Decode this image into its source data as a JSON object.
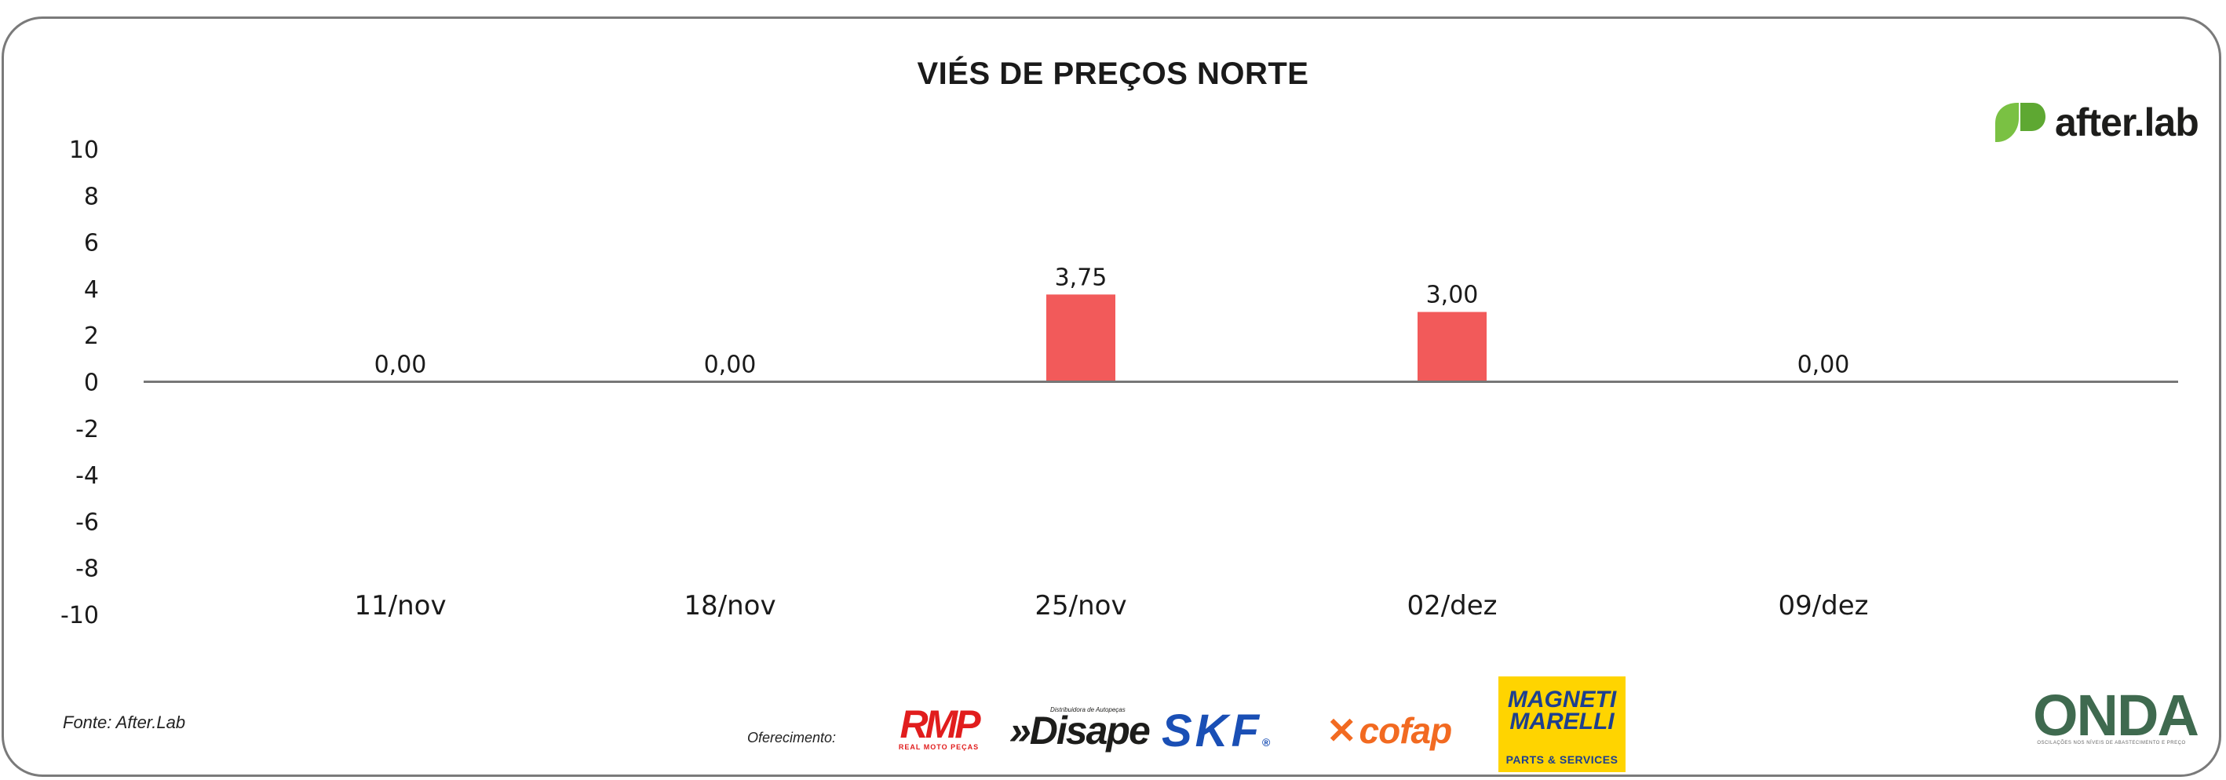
{
  "header": {
    "title": "VIÉS DE PREÇOS NORTE",
    "brand_name": "after.lab",
    "brand_color": "#7ac143"
  },
  "footer": {
    "source": "Fonte: After.Lab",
    "offer_label": "Oferecimento:",
    "sponsors": {
      "rmp": "RMP",
      "rmp_sub": "REAL MOTO PEÇAS",
      "disape": "»Disape",
      "disape_sub": "Distribuidora de Autopeças",
      "skf": "SKF",
      "skf_mark": "®",
      "cofap": "cofap",
      "mm_line1": "MAGNETI",
      "mm_line2": "MARELLI",
      "mm_line3": "PARTS & SERVICES"
    },
    "onda": {
      "word": "ONDA",
      "tagline": "OSCILAÇÕES NOS NÍVEIS DE ABASTECIMENTO E PREÇO"
    }
  },
  "chart_data": {
    "type": "bar",
    "title": "VIÉS DE PREÇOS NORTE",
    "categories": [
      "11/nov",
      "18/nov",
      "25/nov",
      "02/dez",
      "09/dez"
    ],
    "values": [
      0,
      0,
      3.75,
      3.0,
      0
    ],
    "value_labels": [
      "0,00",
      "0,00",
      "3,75",
      "3,00",
      "0,00"
    ],
    "ylim": [
      -10,
      10
    ],
    "yticks": [
      10,
      8,
      6,
      4,
      2,
      0,
      -2,
      -4,
      -6,
      -8,
      -10
    ],
    "bar_color": "#f25a5a",
    "grid": false,
    "legend": "none",
    "xlabel": "",
    "ylabel": ""
  }
}
